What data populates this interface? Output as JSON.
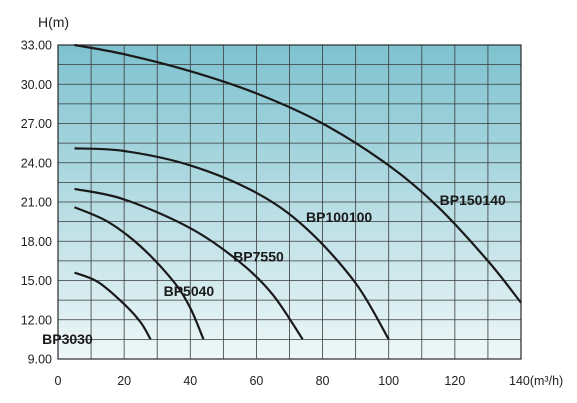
{
  "chart_data": {
    "type": "line",
    "ylabel": "H(m)",
    "xlabel_tick": "140(m³/h)",
    "xlim": [
      0,
      140
    ],
    "ylim": [
      9,
      33
    ],
    "y_ticks": [
      "9.00",
      "12.00",
      "15.00",
      "18.00",
      "21.00",
      "24.00",
      "27.00",
      "30.00",
      "33.00"
    ],
    "x_ticks": [
      "0",
      "20",
      "40",
      "60",
      "80",
      "100",
      "120",
      "140(m³/h)"
    ],
    "grid": true,
    "background_gradient": [
      "#7ec2cf",
      "#eef7f8"
    ],
    "series": [
      {
        "name": "BP150140",
        "x": [
          5,
          20,
          40,
          60,
          80,
          100,
          115,
          130,
          140
        ],
        "y": [
          33.0,
          32.3,
          31.0,
          29.3,
          27.0,
          23.8,
          20.6,
          16.5,
          13.3
        ]
      },
      {
        "name": "BP100100",
        "x": [
          5,
          20,
          40,
          60,
          75,
          90,
          100
        ],
        "y": [
          25.1,
          24.9,
          23.8,
          21.7,
          19.0,
          14.8,
          10.5
        ]
      },
      {
        "name": "BP7550",
        "x": [
          5,
          20,
          40,
          55,
          65,
          74
        ],
        "y": [
          22.0,
          21.2,
          19.0,
          16.4,
          13.9,
          10.5
        ]
      },
      {
        "name": "BP5040",
        "x": [
          5,
          15,
          25,
          35,
          40,
          44
        ],
        "y": [
          20.6,
          19.5,
          17.6,
          14.9,
          12.9,
          10.5
        ]
      },
      {
        "name": "BP3030",
        "x": [
          5,
          12,
          20,
          25,
          28
        ],
        "y": [
          15.6,
          14.9,
          13.2,
          11.8,
          10.5
        ]
      }
    ]
  }
}
